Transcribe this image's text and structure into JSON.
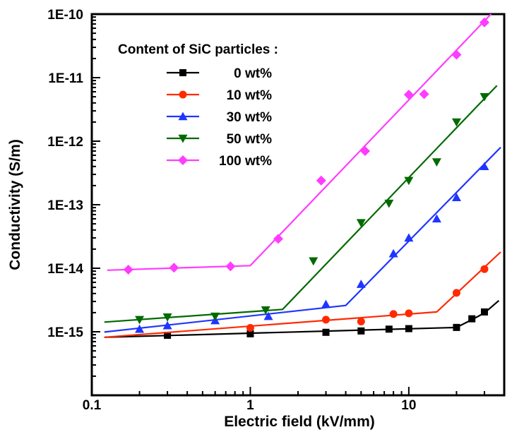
{
  "chart_data": {
    "type": "scatter",
    "xlabel": "Electric field (kV/mm)",
    "ylabel": "Conductivity (S/m)",
    "xscale": "log",
    "yscale": "log",
    "xlim": [
      0.1,
      40
    ],
    "ylim": [
      1e-16,
      1e-10
    ],
    "x_ticks": [
      0.1,
      1,
      10
    ],
    "x_tick_labels": [
      "0.1",
      "1",
      "10"
    ],
    "y_ticks": [
      1e-15,
      1e-14,
      1e-13,
      1e-12,
      1e-11,
      1e-10
    ],
    "y_tick_labels": [
      "1E-15",
      "1E-14",
      "1E-13",
      "1E-12",
      "1E-11",
      "1E-10"
    ],
    "grid": false,
    "legend": {
      "title": "Content of SiC particles :",
      "placement": "top-left"
    },
    "series": [
      {
        "name": "0 wt%",
        "color": "#000000",
        "marker": "square",
        "points": [
          [
            0.3,
            8.8e-16
          ],
          [
            1,
            9.3e-16
          ],
          [
            3,
            9.8e-16
          ],
          [
            5,
            1.03e-15
          ],
          [
            7.5,
            1.1e-15
          ],
          [
            10,
            1.12e-15
          ],
          [
            20,
            1.17e-15
          ],
          [
            25,
            1.6e-15
          ],
          [
            30,
            2.05e-15
          ]
        ],
        "fit": [
          [
            0.12,
            8.2e-16
          ],
          [
            20,
            1.17e-15
          ],
          [
            25,
            1.55e-15
          ],
          [
            30,
            1.98e-15
          ],
          [
            37,
            3.1e-15
          ]
        ]
      },
      {
        "name": "10 wt%",
        "color": "#ff2a00",
        "marker": "circle",
        "points": [
          [
            1,
            1.15e-15
          ],
          [
            3,
            1.55e-15
          ],
          [
            5,
            1.45e-15
          ],
          [
            8,
            1.9e-15
          ],
          [
            10,
            1.95e-15
          ],
          [
            20,
            4.1e-15
          ],
          [
            30,
            9.7e-15
          ]
        ],
        "fit": [
          [
            0.12,
            8.2e-16
          ],
          [
            15,
            2.05e-15
          ],
          [
            38,
            1.8e-14
          ]
        ]
      },
      {
        "name": "30 wt%",
        "color": "#1f35ff",
        "marker": "triangle-up",
        "points": [
          [
            0.2,
            1.1e-15
          ],
          [
            0.3,
            1.25e-15
          ],
          [
            0.6,
            1.5e-15
          ],
          [
            1.3,
            1.75e-15
          ],
          [
            3,
            2.7e-15
          ],
          [
            5,
            5.6e-15
          ],
          [
            8,
            1.7e-14
          ],
          [
            10,
            3e-14
          ],
          [
            15,
            6e-14
          ],
          [
            20,
            1.3e-13
          ],
          [
            30,
            4e-13
          ]
        ],
        "fit": [
          [
            0.12,
            9.9e-16
          ],
          [
            4,
            2.6e-15
          ],
          [
            38,
            8e-13
          ]
        ]
      },
      {
        "name": "50 wt%",
        "color": "#006a00",
        "marker": "triangle-down",
        "points": [
          [
            0.2,
            1.55e-15
          ],
          [
            0.3,
            1.7e-15
          ],
          [
            0.6,
            1.75e-15
          ],
          [
            1.25,
            2.2e-15
          ],
          [
            2.5,
            1.3e-14
          ],
          [
            5,
            5.2e-14
          ],
          [
            7.5,
            1.05e-13
          ],
          [
            10,
            2.4e-13
          ],
          [
            15,
            4.7e-13
          ],
          [
            20,
            2e-12
          ],
          [
            30,
            5e-12
          ]
        ],
        "fit": [
          [
            0.12,
            1.42e-15
          ],
          [
            1.6,
            2.25e-15
          ],
          [
            36,
            7.5e-12
          ]
        ]
      },
      {
        "name": "100 wt%",
        "color": "#ff3cff",
        "marker": "diamond",
        "points": [
          [
            0.17,
            9.5e-15
          ],
          [
            0.33,
            1.02e-14
          ],
          [
            0.75,
            1.07e-14
          ],
          [
            1.5,
            2.9e-14
          ],
          [
            2.8,
            2.4e-13
          ],
          [
            5.3,
            7e-13
          ],
          [
            10,
            5.4e-12
          ],
          [
            12.5,
            5.5e-12
          ],
          [
            20,
            2.3e-11
          ],
          [
            30,
            7.4e-11
          ]
        ],
        "fit": [
          [
            0.125,
            9.3e-15
          ],
          [
            1,
            1.1e-14
          ],
          [
            33,
            1e-10
          ]
        ]
      }
    ]
  }
}
